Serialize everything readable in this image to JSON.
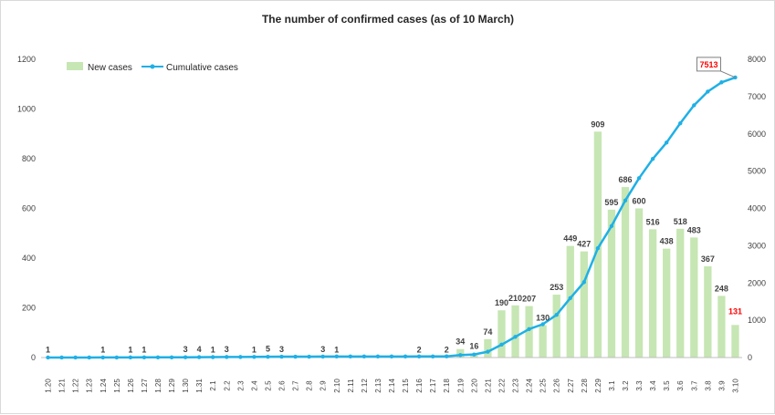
{
  "chart_data": {
    "type": "bar",
    "title": "The number of confirmed cases (as of 10 March)",
    "categories": [
      "1.20",
      "1.21",
      "1.22",
      "1.23",
      "1.24",
      "1.25",
      "1.26",
      "1.27",
      "1.28",
      "1.29",
      "1.30",
      "1.31",
      "2.1",
      "2.2",
      "2.3",
      "2.4",
      "2.5",
      "2.6",
      "2.7",
      "2.8",
      "2.9",
      "2.10",
      "2.11",
      "2.12",
      "2.13",
      "2.14",
      "2.15",
      "2.16",
      "2.17",
      "2.18",
      "2.19",
      "2.20",
      "2.21",
      "2.22",
      "2.23",
      "2.24",
      "2.25",
      "2.26",
      "2.27",
      "2.28",
      "2.29",
      "3.1",
      "3.2",
      "3.3",
      "3.4",
      "3.5",
      "3.6",
      "3.7",
      "3.8",
      "3.9",
      "3.10"
    ],
    "series": [
      {
        "name": "New cases",
        "axis": "left",
        "kind": "bar",
        "color": "#c6e6b3",
        "values": [
          1,
          0,
          0,
          0,
          1,
          0,
          1,
          1,
          0,
          0,
          3,
          4,
          1,
          3,
          0,
          1,
          5,
          3,
          0,
          0,
          3,
          1,
          0,
          0,
          0,
          0,
          0,
          2,
          0,
          2,
          34,
          16,
          74,
          190,
          210,
          207,
          130,
          253,
          449,
          427,
          909,
          595,
          686,
          600,
          516,
          438,
          518,
          483,
          367,
          248,
          131
        ],
        "labels": [
          "1",
          "",
          "",
          "",
          "1",
          "",
          "1",
          "1",
          "",
          "",
          "3",
          "4",
          "1",
          "3",
          "",
          "1",
          "5",
          "3",
          "",
          "",
          "3",
          "1",
          "",
          "",
          "",
          "",
          "",
          "2",
          "",
          "2",
          "34",
          "16",
          "74",
          "190",
          "210",
          "207",
          "130",
          "253",
          "449",
          "427",
          "909",
          "595",
          "686",
          "600",
          "516",
          "438",
          "518",
          "483",
          "367",
          "248",
          "131"
        ]
      },
      {
        "name": "Cumulative cases",
        "axis": "right",
        "kind": "line",
        "color": "#1fb0e6",
        "values": [
          1,
          1,
          1,
          1,
          2,
          2,
          3,
          4,
          4,
          4,
          7,
          11,
          12,
          15,
          15,
          16,
          21,
          24,
          24,
          24,
          27,
          28,
          28,
          28,
          28,
          28,
          28,
          30,
          30,
          32,
          66,
          82,
          156,
          346,
          556,
          763,
          893,
          1146,
          1595,
          2022,
          2931,
          3526,
          4212,
          4812,
          5328,
          5766,
          6284,
          6767,
          7134,
          7382,
          7513
        ]
      }
    ],
    "highlight": {
      "bar_label": "131",
      "line_callout": "7513",
      "color": "#ff0000"
    },
    "y_left": {
      "min": 0,
      "max": 1200,
      "step": 200,
      "ticks": [
        "0",
        "200",
        "400",
        "600",
        "800",
        "1000",
        "1200"
      ]
    },
    "y_right": {
      "min": 0,
      "max": 8000,
      "step": 1000,
      "ticks": [
        "0",
        "1000",
        "2000",
        "3000",
        "4000",
        "5000",
        "6000",
        "7000",
        "8000"
      ]
    },
    "legend": {
      "placement": "top-left",
      "items": [
        "New cases",
        "Cumulative cases"
      ]
    },
    "grid": false
  }
}
